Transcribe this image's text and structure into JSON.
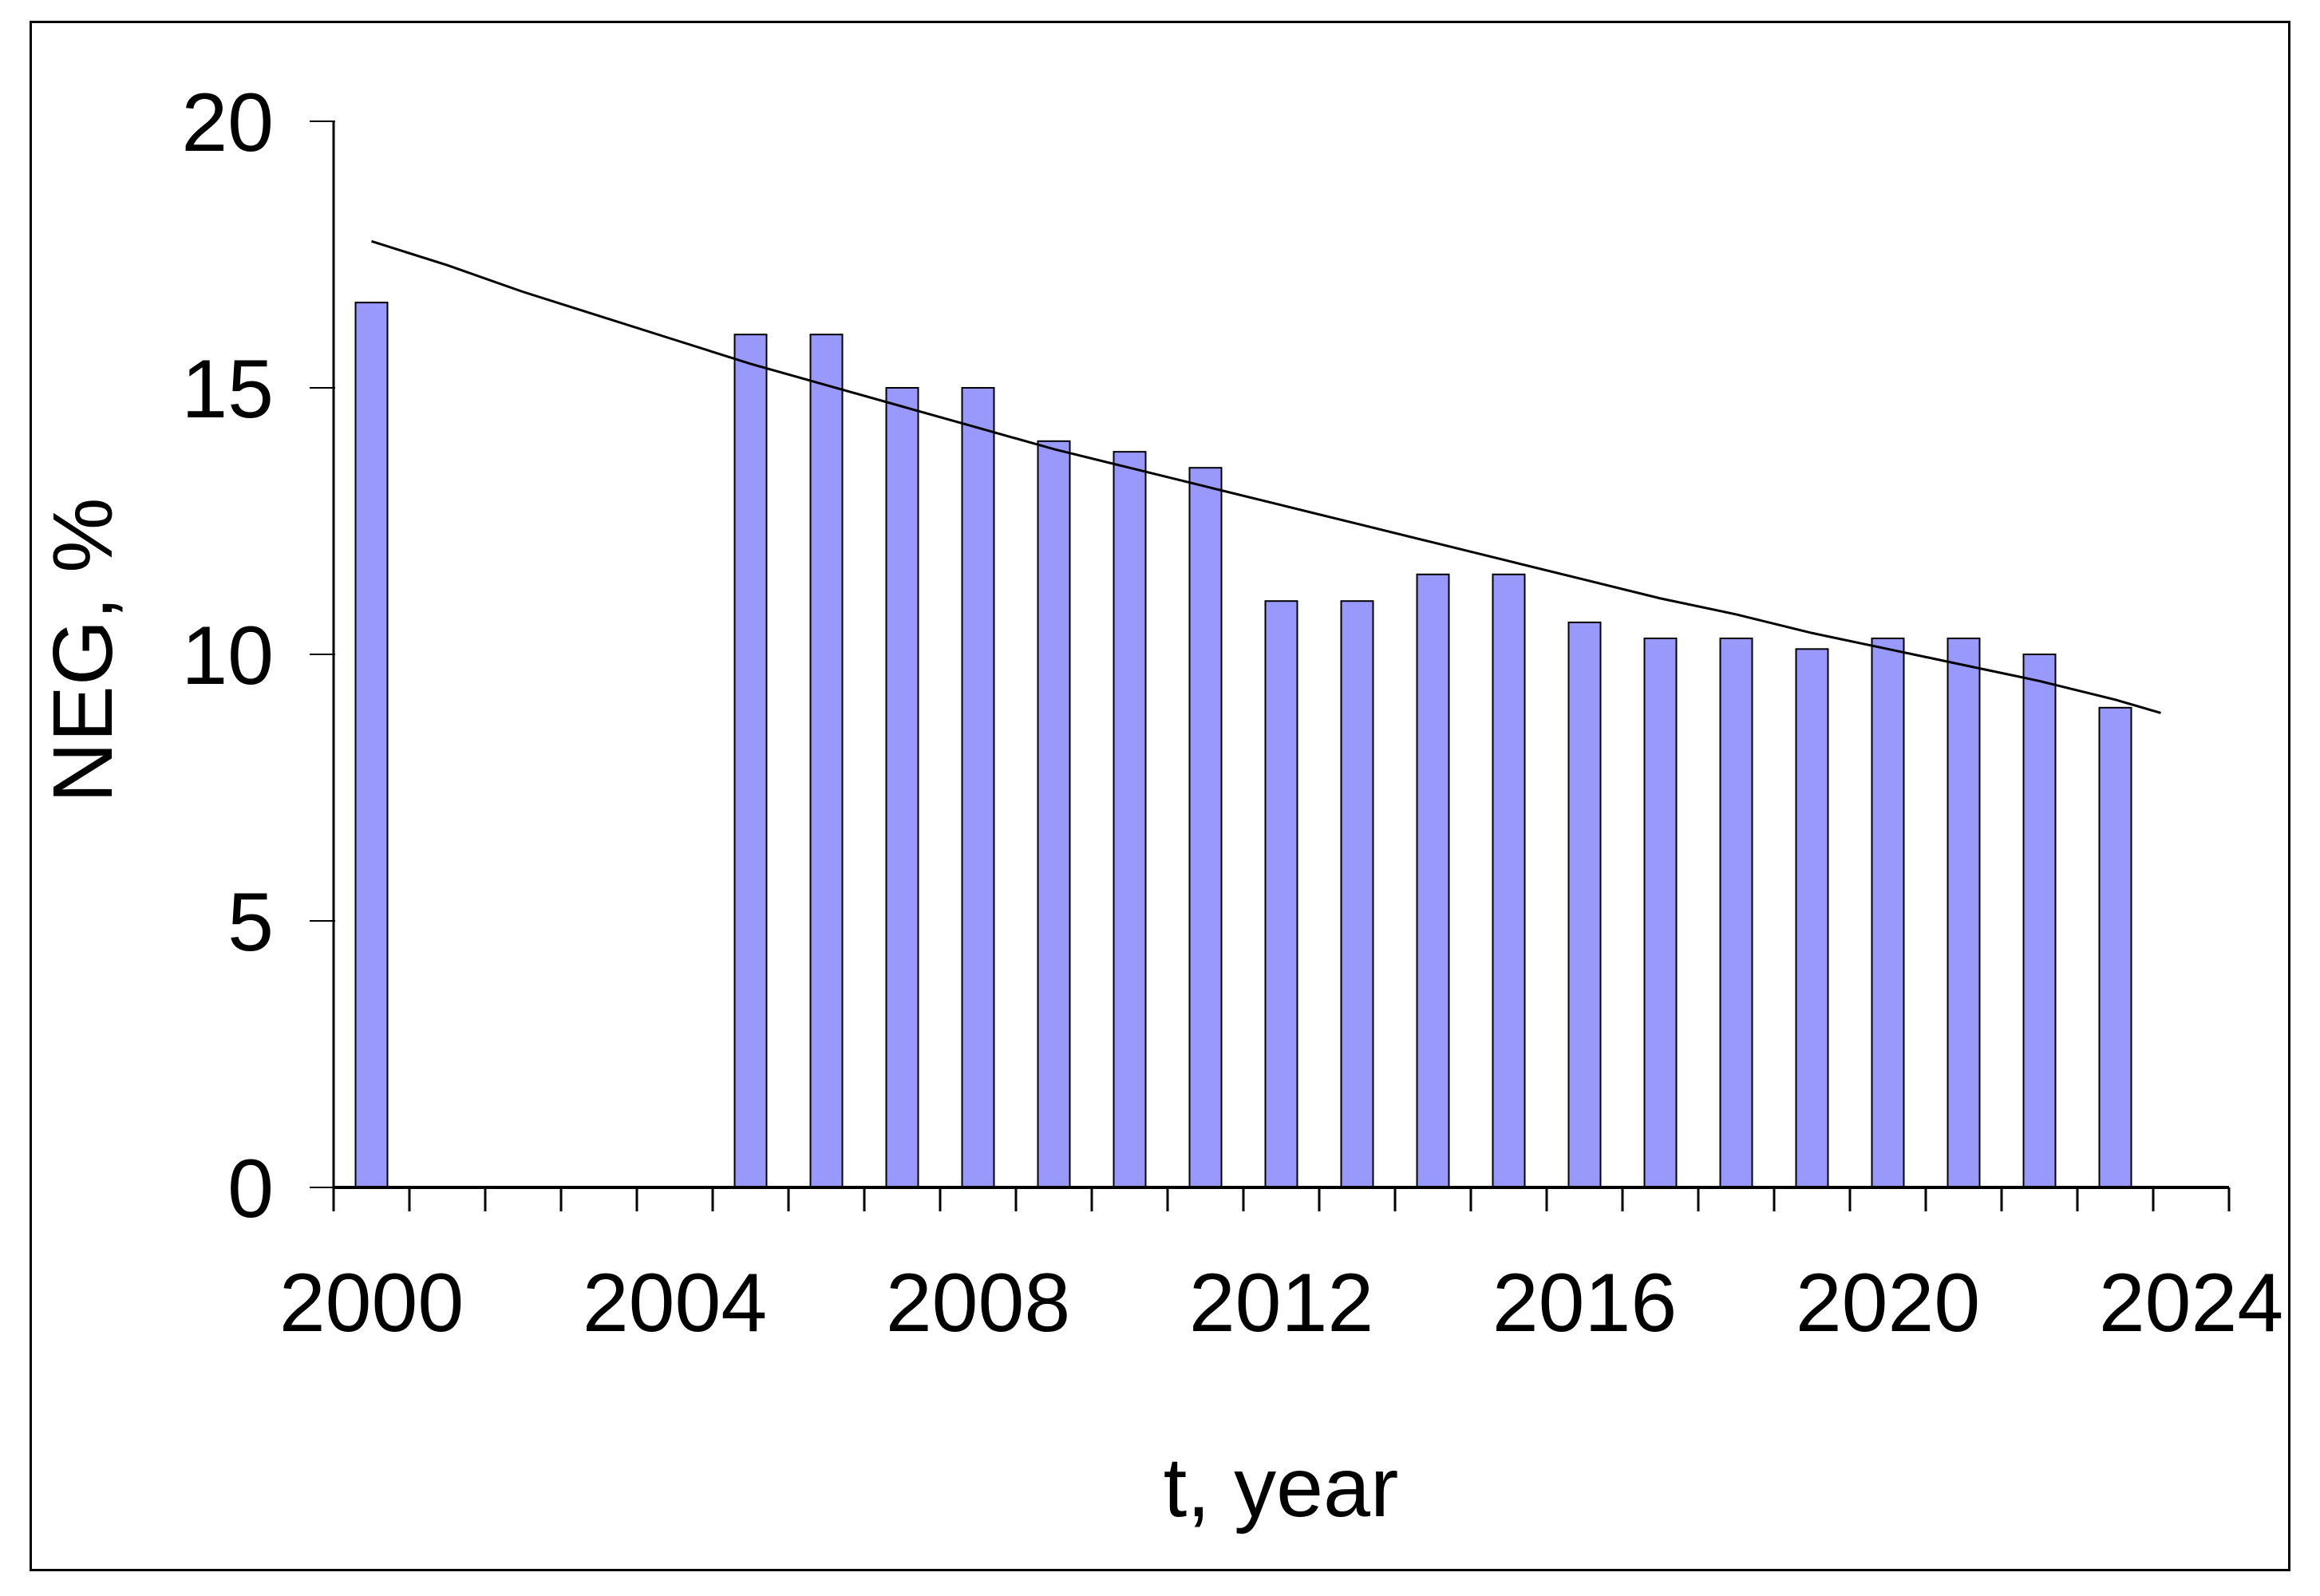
{
  "chart_data": {
    "type": "bar",
    "title": "",
    "xlabel": "t, year",
    "ylabel": "NEG, %",
    "ylim": [
      0,
      20
    ],
    "yticks": [
      0,
      5,
      10,
      15,
      20
    ],
    "x_year_range": [
      2000,
      2024
    ],
    "x_minor_tick_every_year": true,
    "xtick_label_years": [
      2000,
      2004,
      2008,
      2012,
      2016,
      2020,
      2024
    ],
    "xtick_labels": [
      "2000",
      "2004",
      "2008",
      "2012",
      "2016",
      "2020",
      "2024"
    ],
    "legend": "none",
    "grid": "off",
    "bar_color": "#9999FC",
    "bar_border_color": "#000000",
    "trend_line_color": "#000000",
    "axis_color": "#000000",
    "bars": [
      {
        "year": 2000,
        "value": 16.6
      },
      {
        "year": 2005,
        "value": 16.0
      },
      {
        "year": 2006,
        "value": 16.0
      },
      {
        "year": 2007,
        "value": 15.0
      },
      {
        "year": 2008,
        "value": 15.0
      },
      {
        "year": 2009,
        "value": 14.0
      },
      {
        "year": 2010,
        "value": 13.8
      },
      {
        "year": 2011,
        "value": 13.5
      },
      {
        "year": 2012,
        "value": 11.0
      },
      {
        "year": 2013,
        "value": 11.0
      },
      {
        "year": 2014,
        "value": 11.5
      },
      {
        "year": 2015,
        "value": 11.5
      },
      {
        "year": 2016,
        "value": 10.6
      },
      {
        "year": 2017,
        "value": 10.3
      },
      {
        "year": 2018,
        "value": 10.3
      },
      {
        "year": 2019,
        "value": 10.1
      },
      {
        "year": 2020,
        "value": 10.3
      },
      {
        "year": 2021,
        "value": 10.3
      },
      {
        "year": 2022,
        "value": 10.0
      },
      {
        "year": 2023,
        "value": 9.0
      }
    ],
    "trend_line_points": [
      [
        2000,
        17.75
      ],
      [
        2001,
        17.3
      ],
      [
        2002,
        16.8
      ],
      [
        2003,
        16.35
      ],
      [
        2004,
        15.9
      ],
      [
        2005,
        15.45
      ],
      [
        2006,
        15.05
      ],
      [
        2007,
        14.65
      ],
      [
        2008,
        14.25
      ],
      [
        2009,
        13.85
      ],
      [
        2010,
        13.5
      ],
      [
        2011,
        13.15
      ],
      [
        2012,
        12.8
      ],
      [
        2013,
        12.45
      ],
      [
        2014,
        12.1
      ],
      [
        2015,
        11.75
      ],
      [
        2016,
        11.4
      ],
      [
        2017,
        11.05
      ],
      [
        2018,
        10.75
      ],
      [
        2019,
        10.4
      ],
      [
        2020,
        10.1
      ],
      [
        2021,
        9.8
      ],
      [
        2022,
        9.5
      ],
      [
        2023,
        9.15
      ],
      [
        2023.6,
        8.9
      ]
    ]
  }
}
